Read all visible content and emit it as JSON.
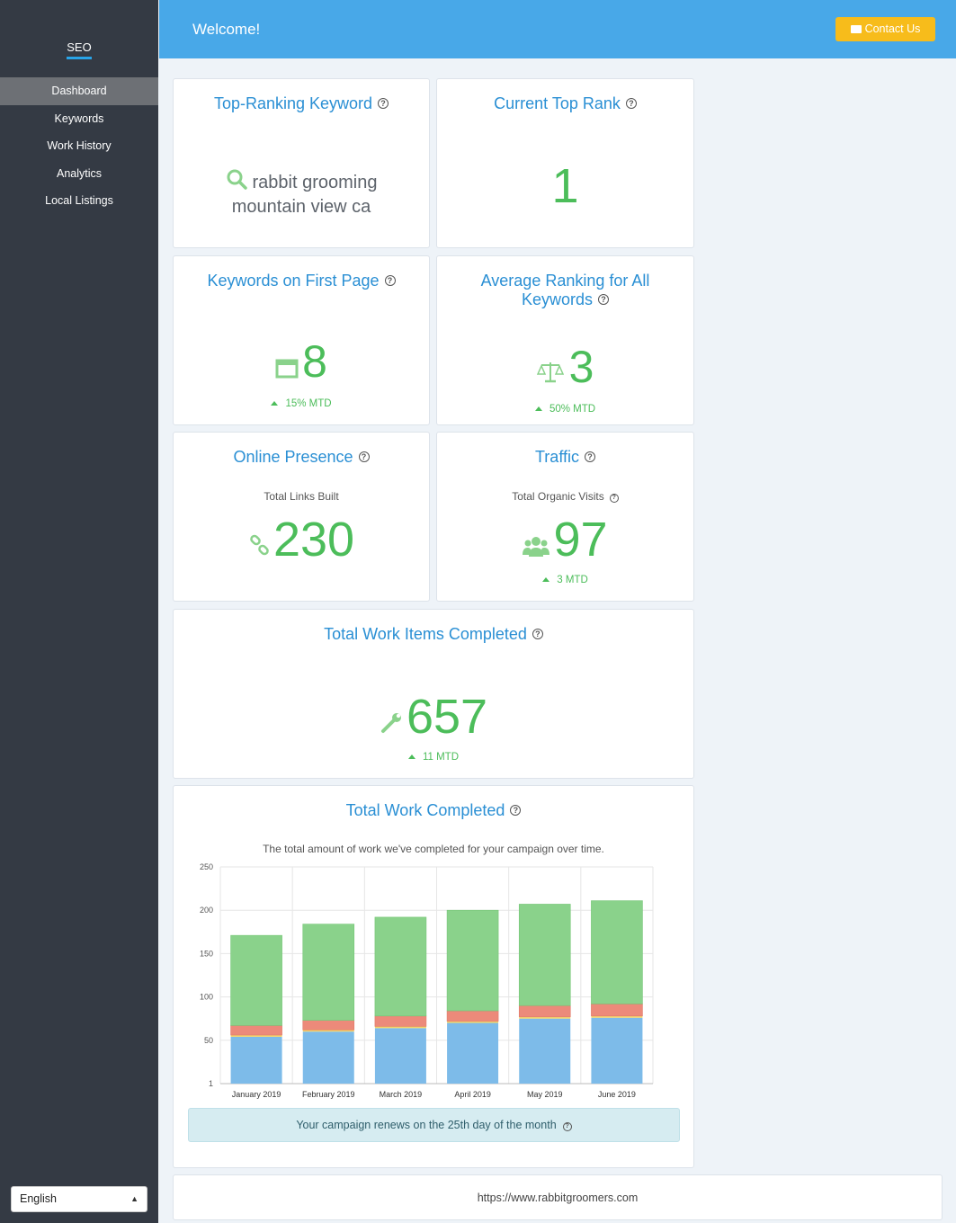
{
  "sidebar": {
    "brand": "SEO",
    "items": [
      {
        "label": "Dashboard",
        "active": true
      },
      {
        "label": "Keywords"
      },
      {
        "label": "Work History"
      },
      {
        "label": "Analytics"
      },
      {
        "label": "Local Listings"
      }
    ],
    "language": "English"
  },
  "header": {
    "title": "Welcome!",
    "contact_label": "Contact Us"
  },
  "cards": {
    "top_keyword": {
      "title": "Top-Ranking Keyword",
      "line1": "rabbit grooming",
      "line2": "mountain view ca"
    },
    "top_rank": {
      "title": "Current Top Rank",
      "value": "1"
    },
    "first_page": {
      "title": "Keywords on First Page",
      "value": "8",
      "mtd": "15% MTD"
    },
    "avg_rank": {
      "title_line1": "Average Ranking for All",
      "title_line2": "Keywords",
      "value": "3",
      "mtd": "50% MTD"
    },
    "online_presence": {
      "title": "Online Presence",
      "subtitle": "Total Links Built",
      "value": "230"
    },
    "traffic": {
      "title": "Traffic",
      "subtitle": "Total Organic Visits",
      "value": "97",
      "mtd": "3 MTD"
    },
    "work_items": {
      "title": "Total Work Items Completed",
      "value": "657",
      "mtd": "11 MTD"
    },
    "work_completed": {
      "title": "Total Work Completed",
      "subtitle": "The total amount of work we've completed for your campaign over time.",
      "renew": "Your campaign renews on the 25th day of the month"
    }
  },
  "footer": {
    "url": "https://www.rabbitgroomers.com"
  },
  "colors": {
    "accent": "#2a8fd4",
    "green": "#4cbd5a",
    "sidebar": "#343a44",
    "header": "#48a8e8",
    "contact": "#f7bc1b"
  },
  "chart_data": {
    "type": "bar",
    "stacked": true,
    "categories": [
      "January 2019",
      "February 2019",
      "March 2019",
      "April 2019",
      "May 2019",
      "June 2019"
    ],
    "series": [
      {
        "values": [
          54,
          60,
          64,
          70,
          75,
          76
        ],
        "color": "#7dbbe9"
      },
      {
        "values": [
          2,
          2,
          2,
          2,
          2,
          2
        ],
        "color": "#f4d46a"
      },
      {
        "values": [
          11,
          11,
          12,
          12,
          13,
          14
        ],
        "color": "#ec8a7a"
      },
      {
        "values": [
          104,
          111,
          114,
          116,
          117,
          119
        ],
        "color": "#8ad28b"
      }
    ],
    "yticks": [
      "250",
      "200",
      "150",
      "100",
      "50",
      "1"
    ],
    "ylim": [
      0,
      250
    ],
    "grid": true
  }
}
